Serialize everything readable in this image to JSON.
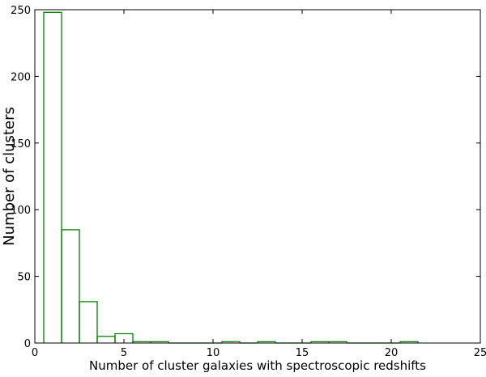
{
  "chart_data": {
    "type": "histogram",
    "xlabel": "Number of cluster galaxies with spectroscopic redshifts",
    "ylabel": "Number of clusters",
    "bins": [
      0.5,
      1.5,
      2.5,
      3.5,
      4.5,
      5.5,
      6.5,
      7.5,
      8.5,
      9.5,
      10.5,
      11.5,
      12.5,
      13.5,
      14.5,
      15.5,
      16.5,
      17.5,
      18.5,
      19.5,
      20.5,
      21.5
    ],
    "values": [
      248,
      85,
      31,
      5,
      7,
      1,
      1,
      0,
      0,
      0,
      1,
      0,
      1,
      0,
      0,
      1,
      1,
      0,
      0,
      0,
      1
    ],
    "color": "#008000",
    "xlim": [
      0,
      25
    ],
    "xticks": [
      0,
      5,
      10,
      15,
      20,
      25
    ],
    "ylim": [
      0,
      250
    ],
    "yticks": [
      0,
      50,
      100,
      150,
      200,
      250
    ]
  }
}
